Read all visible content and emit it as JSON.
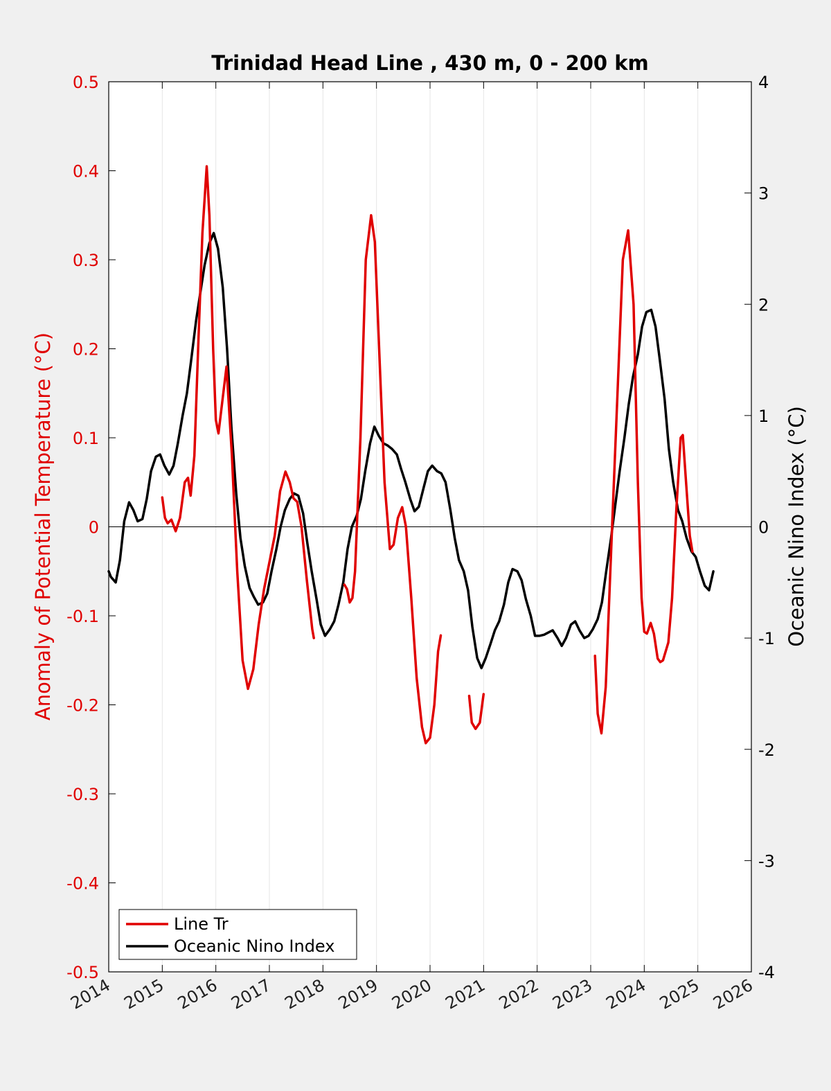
{
  "chart_data": {
    "type": "line",
    "title": "Trinidad Head Line , 430 m, 0 - 200 km",
    "ylabel": "Anomaly of Potential Temperature (°C)",
    "ylabel_right": "Oceanic Nino Index (°C)",
    "xlim": [
      2014,
      2026
    ],
    "ylim": [
      -0.5,
      0.5
    ],
    "ylim_right": [
      -4,
      4
    ],
    "x_ticks": [
      "2014",
      "2015",
      "2016",
      "2017",
      "2018",
      "2019",
      "2020",
      "2021",
      "2022",
      "2023",
      "2024",
      "2025",
      "2026"
    ],
    "y_ticks_left": [
      "-0.5",
      "-0.4",
      "-0.3",
      "-0.2",
      "-0.1",
      "0",
      "0.1",
      "0.2",
      "0.3",
      "0.4",
      "0.5"
    ],
    "y_ticks_right": [
      "-4",
      "-3",
      "-2",
      "-1",
      "0",
      "1",
      "2",
      "3",
      "4"
    ],
    "grid": "vertical",
    "legend_position": "bottom-left",
    "colors": {
      "line_tr": "#e00000",
      "oni": "#000000"
    },
    "series": [
      {
        "name": "Line Tr",
        "axis": "left",
        "segments": [
          [
            [
              2015.0,
              0.033
            ],
            [
              2015.05,
              0.01
            ],
            [
              2015.1,
              0.004
            ],
            [
              2015.17,
              0.008
            ],
            [
              2015.25,
              -0.005
            ],
            [
              2015.33,
              0.01
            ],
            [
              2015.42,
              0.05
            ],
            [
              2015.48,
              0.055
            ],
            [
              2015.53,
              0.035
            ],
            [
              2015.6,
              0.08
            ],
            [
              2015.67,
              0.2
            ],
            [
              2015.75,
              0.33
            ],
            [
              2015.83,
              0.405
            ],
            [
              2015.88,
              0.35
            ],
            [
              2015.95,
              0.2
            ],
            [
              2016.0,
              0.12
            ],
            [
              2016.05,
              0.105
            ],
            [
              2016.12,
              0.14
            ],
            [
              2016.2,
              0.18
            ],
            [
              2016.3,
              0.08
            ],
            [
              2016.4,
              -0.05
            ],
            [
              2016.5,
              -0.15
            ],
            [
              2016.6,
              -0.182
            ],
            [
              2016.7,
              -0.16
            ],
            [
              2016.8,
              -0.11
            ],
            [
              2016.9,
              -0.07
            ],
            [
              2017.0,
              -0.04
            ],
            [
              2017.1,
              -0.01
            ],
            [
              2017.2,
              0.04
            ],
            [
              2017.3,
              0.062
            ],
            [
              2017.38,
              0.05
            ],
            [
              2017.45,
              0.032
            ],
            [
              2017.52,
              0.028
            ],
            [
              2017.6,
              0.0
            ],
            [
              2017.7,
              -0.06
            ],
            [
              2017.8,
              -0.115
            ],
            [
              2017.83,
              -0.125
            ]
          ],
          [
            [
              2018.4,
              -0.065
            ],
            [
              2018.45,
              -0.07
            ],
            [
              2018.5,
              -0.085
            ],
            [
              2018.55,
              -0.08
            ],
            [
              2018.6,
              -0.05
            ],
            [
              2018.7,
              0.1
            ],
            [
              2018.8,
              0.3
            ],
            [
              2018.9,
              0.35
            ],
            [
              2018.97,
              0.32
            ],
            [
              2019.05,
              0.2
            ],
            [
              2019.15,
              0.05
            ],
            [
              2019.25,
              -0.025
            ],
            [
              2019.32,
              -0.02
            ],
            [
              2019.4,
              0.01
            ],
            [
              2019.48,
              0.022
            ],
            [
              2019.55,
              0.0
            ],
            [
              2019.65,
              -0.08
            ],
            [
              2019.75,
              -0.17
            ],
            [
              2019.85,
              -0.225
            ],
            [
              2019.92,
              -0.243
            ],
            [
              2020.0,
              -0.237
            ],
            [
              2020.08,
              -0.2
            ],
            [
              2020.15,
              -0.14
            ],
            [
              2020.2,
              -0.122
            ]
          ],
          [
            [
              2020.73,
              -0.19
            ],
            [
              2020.78,
              -0.22
            ],
            [
              2020.85,
              -0.227
            ],
            [
              2020.93,
              -0.22
            ],
            [
              2021.0,
              -0.188
            ]
          ],
          [
            [
              2023.08,
              -0.145
            ],
            [
              2023.13,
              -0.21
            ],
            [
              2023.2,
              -0.232
            ],
            [
              2023.28,
              -0.18
            ],
            [
              2023.4,
              0.0
            ],
            [
              2023.5,
              0.15
            ],
            [
              2023.6,
              0.3
            ],
            [
              2023.7,
              0.333
            ],
            [
              2023.8,
              0.25
            ],
            [
              2023.88,
              0.05
            ],
            [
              2023.95,
              -0.08
            ],
            [
              2024.0,
              -0.118
            ],
            [
              2024.05,
              -0.12
            ],
            [
              2024.12,
              -0.108
            ],
            [
              2024.18,
              -0.12
            ],
            [
              2024.25,
              -0.148
            ],
            [
              2024.3,
              -0.152
            ],
            [
              2024.35,
              -0.15
            ],
            [
              2024.45,
              -0.13
            ],
            [
              2024.52,
              -0.08
            ],
            [
              2024.6,
              0.02
            ],
            [
              2024.68,
              0.1
            ],
            [
              2024.72,
              0.103
            ],
            [
              2024.78,
              0.05
            ],
            [
              2024.85,
              -0.01
            ],
            [
              2024.9,
              -0.028
            ]
          ]
        ]
      },
      {
        "name": "Oceanic Nino Index",
        "axis": "right",
        "segments": [
          [
            [
              2014.0,
              -0.4
            ],
            [
              2014.04,
              -0.45
            ],
            [
              2014.13,
              -0.5
            ],
            [
              2014.21,
              -0.3
            ],
            [
              2014.29,
              0.05
            ],
            [
              2014.38,
              0.22
            ],
            [
              2014.46,
              0.15
            ],
            [
              2014.54,
              0.05
            ],
            [
              2014.63,
              0.07
            ],
            [
              2014.71,
              0.25
            ],
            [
              2014.79,
              0.5
            ],
            [
              2014.88,
              0.63
            ],
            [
              2014.96,
              0.65
            ],
            [
              2015.04,
              0.55
            ],
            [
              2015.13,
              0.47
            ],
            [
              2015.21,
              0.55
            ],
            [
              2015.29,
              0.75
            ],
            [
              2015.38,
              1.0
            ],
            [
              2015.46,
              1.2
            ],
            [
              2015.54,
              1.5
            ],
            [
              2015.63,
              1.85
            ],
            [
              2015.71,
              2.1
            ],
            [
              2015.79,
              2.35
            ],
            [
              2015.88,
              2.55
            ],
            [
              2015.96,
              2.64
            ],
            [
              2016.04,
              2.5
            ],
            [
              2016.13,
              2.15
            ],
            [
              2016.21,
              1.6
            ],
            [
              2016.29,
              0.9
            ],
            [
              2016.38,
              0.3
            ],
            [
              2016.46,
              -0.1
            ],
            [
              2016.54,
              -0.35
            ],
            [
              2016.63,
              -0.55
            ],
            [
              2016.71,
              -0.63
            ],
            [
              2016.79,
              -0.7
            ],
            [
              2016.88,
              -0.68
            ],
            [
              2016.96,
              -0.6
            ],
            [
              2017.04,
              -0.4
            ],
            [
              2017.13,
              -0.2
            ],
            [
              2017.21,
              0.0
            ],
            [
              2017.29,
              0.15
            ],
            [
              2017.38,
              0.25
            ],
            [
              2017.46,
              0.3
            ],
            [
              2017.54,
              0.28
            ],
            [
              2017.63,
              0.12
            ],
            [
              2017.71,
              -0.15
            ],
            [
              2017.79,
              -0.4
            ],
            [
              2017.88,
              -0.65
            ],
            [
              2017.96,
              -0.88
            ],
            [
              2018.04,
              -0.98
            ],
            [
              2018.13,
              -0.92
            ],
            [
              2018.21,
              -0.85
            ],
            [
              2018.29,
              -0.7
            ],
            [
              2018.38,
              -0.5
            ],
            [
              2018.46,
              -0.2
            ],
            [
              2018.54,
              0.0
            ],
            [
              2018.63,
              0.1
            ],
            [
              2018.71,
              0.25
            ],
            [
              2018.79,
              0.5
            ],
            [
              2018.88,
              0.75
            ],
            [
              2018.96,
              0.9
            ],
            [
              2019.04,
              0.82
            ],
            [
              2019.13,
              0.75
            ],
            [
              2019.21,
              0.73
            ],
            [
              2019.29,
              0.7
            ],
            [
              2019.38,
              0.65
            ],
            [
              2019.46,
              0.52
            ],
            [
              2019.54,
              0.4
            ],
            [
              2019.63,
              0.25
            ],
            [
              2019.71,
              0.14
            ],
            [
              2019.79,
              0.18
            ],
            [
              2019.88,
              0.35
            ],
            [
              2019.96,
              0.5
            ],
            [
              2020.04,
              0.55
            ],
            [
              2020.13,
              0.5
            ],
            [
              2020.21,
              0.48
            ],
            [
              2020.29,
              0.4
            ],
            [
              2020.38,
              0.15
            ],
            [
              2020.46,
              -0.1
            ],
            [
              2020.54,
              -0.3
            ],
            [
              2020.63,
              -0.4
            ],
            [
              2020.71,
              -0.57
            ],
            [
              2020.79,
              -0.9
            ],
            [
              2020.88,
              -1.18
            ],
            [
              2020.96,
              -1.27
            ],
            [
              2021.04,
              -1.18
            ],
            [
              2021.13,
              -1.05
            ],
            [
              2021.21,
              -0.93
            ],
            [
              2021.29,
              -0.85
            ],
            [
              2021.38,
              -0.7
            ],
            [
              2021.46,
              -0.5
            ],
            [
              2021.54,
              -0.38
            ],
            [
              2021.63,
              -0.4
            ],
            [
              2021.71,
              -0.48
            ],
            [
              2021.79,
              -0.65
            ],
            [
              2021.88,
              -0.8
            ],
            [
              2021.96,
              -0.98
            ],
            [
              2022.04,
              -0.98
            ],
            [
              2022.13,
              -0.97
            ],
            [
              2022.21,
              -0.95
            ],
            [
              2022.29,
              -0.93
            ],
            [
              2022.38,
              -1.0
            ],
            [
              2022.46,
              -1.07
            ],
            [
              2022.54,
              -1.0
            ],
            [
              2022.63,
              -0.88
            ],
            [
              2022.71,
              -0.85
            ],
            [
              2022.79,
              -0.93
            ],
            [
              2022.88,
              -1.0
            ],
            [
              2022.96,
              -0.98
            ],
            [
              2023.04,
              -0.92
            ],
            [
              2023.13,
              -0.83
            ],
            [
              2023.21,
              -0.68
            ],
            [
              2023.29,
              -0.4
            ],
            [
              2023.38,
              -0.1
            ],
            [
              2023.46,
              0.2
            ],
            [
              2023.54,
              0.5
            ],
            [
              2023.63,
              0.8
            ],
            [
              2023.71,
              1.1
            ],
            [
              2023.79,
              1.35
            ],
            [
              2023.88,
              1.55
            ],
            [
              2023.96,
              1.8
            ],
            [
              2024.04,
              1.93
            ],
            [
              2024.13,
              1.95
            ],
            [
              2024.21,
              1.8
            ],
            [
              2024.29,
              1.5
            ],
            [
              2024.38,
              1.15
            ],
            [
              2024.46,
              0.7
            ],
            [
              2024.54,
              0.4
            ],
            [
              2024.63,
              0.15
            ],
            [
              2024.71,
              0.05
            ],
            [
              2024.79,
              -0.1
            ],
            [
              2024.88,
              -0.22
            ],
            [
              2024.96,
              -0.27
            ],
            [
              2025.04,
              -0.4
            ],
            [
              2025.13,
              -0.53
            ],
            [
              2025.21,
              -0.57
            ],
            [
              2025.29,
              -0.4
            ]
          ]
        ]
      }
    ]
  }
}
